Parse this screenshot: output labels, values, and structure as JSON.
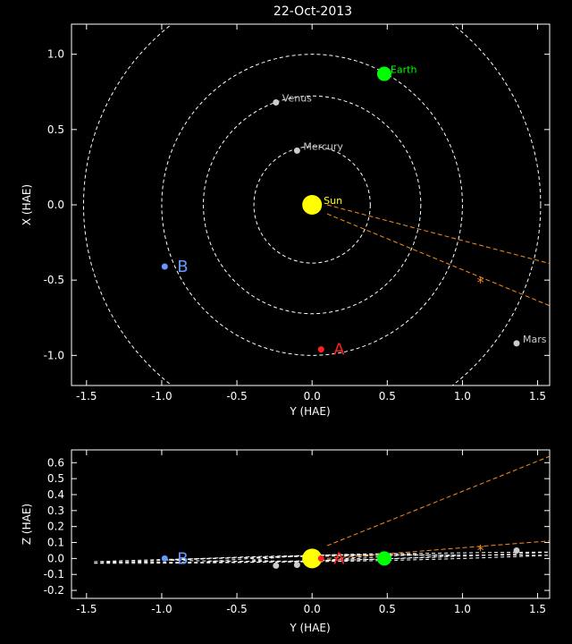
{
  "title": "22-Oct-2013",
  "chart_data": [
    {
      "type": "scatter",
      "panel": "top",
      "title": "22-Oct-2013",
      "xlabel": "Y (HAE)",
      "ylabel": "X (HAE)",
      "xlim": [
        -1.6,
        1.58
      ],
      "ylim": [
        1.2,
        -1.2
      ],
      "xticks": [
        "-1.5",
        "-1.0",
        "-0.5",
        "0.0",
        "0.5",
        "1.0",
        "1.5"
      ],
      "xtick_values": [
        -1.5,
        -1.0,
        -0.5,
        0.0,
        0.5,
        1.0,
        1.5
      ],
      "yticks": [
        "-1.0",
        "-0.5",
        "0.0",
        "0.5",
        "1.0"
      ],
      "ytick_values": [
        -1.0,
        -0.5,
        0.0,
        0.5,
        1.0
      ],
      "orbits": [
        {
          "name": "Mercury",
          "radius": 0.387
        },
        {
          "name": "Venus",
          "radius": 0.723
        },
        {
          "name": "Earth",
          "radius": 1.0
        },
        {
          "name": "Mars",
          "radius": 1.52
        }
      ],
      "bodies": [
        {
          "label": "Sun",
          "x": 0.0,
          "y": 0.0,
          "color": "#ffff00",
          "label_color": "#ffff00",
          "size": "large"
        },
        {
          "label": "Mercury",
          "x": -0.1,
          "y": 0.36,
          "color": "#cccccc",
          "label_color": "#cccccc",
          "size": "small"
        },
        {
          "label": "Venus",
          "x": -0.24,
          "y": 0.68,
          "color": "#cccccc",
          "label_color": "#cccccc",
          "size": "small"
        },
        {
          "label": "Earth",
          "x": 0.48,
          "y": 0.87,
          "color": "#00ff00",
          "label_color": "#00ff00",
          "size": "medium"
        },
        {
          "label": "Mars",
          "x": 1.36,
          "y": -0.92,
          "color": "#cccccc",
          "label_color": "#cccccc",
          "size": "small"
        },
        {
          "label": "A",
          "x": 0.06,
          "y": -0.96,
          "color": "#ff2020",
          "label_color": "#ff2020",
          "size": "small"
        },
        {
          "label": "B",
          "x": -0.98,
          "y": -0.41,
          "color": "#6699ff",
          "label_color": "#6699ff",
          "size": "small"
        }
      ],
      "marker": {
        "symbol": "*",
        "x": 1.12,
        "y": -0.51,
        "color": "#ff8c1a"
      },
      "cone": {
        "color": "#ff8c1a",
        "lines": [
          [
            [
              0.1,
              -0.06
            ],
            [
              1.58,
              -0.67
            ]
          ],
          [
            [
              0.1,
              0.0
            ],
            [
              1.58,
              -0.39
            ]
          ]
        ]
      }
    },
    {
      "type": "scatter",
      "panel": "bottom",
      "xlabel": "Y (HAE)",
      "ylabel": "Z (HAE)",
      "xlim": [
        -1.6,
        1.58
      ],
      "ylim": [
        -0.25,
        0.68
      ],
      "xticks": [
        "-1.5",
        "-1.0",
        "-0.5",
        "0.0",
        "0.5",
        "1.0",
        "1.5"
      ],
      "xtick_values": [
        -1.5,
        -1.0,
        -0.5,
        0.0,
        0.5,
        1.0,
        1.5
      ],
      "yticks": [
        "-0.2",
        "-0.1",
        "0.0",
        "0.1",
        "0.2",
        "0.3",
        "0.4",
        "0.5",
        "0.6"
      ],
      "ytick_values": [
        -0.2,
        -0.1,
        0.0,
        0.1,
        0.2,
        0.3,
        0.4,
        0.5,
        0.6
      ],
      "bodies": [
        {
          "label": "",
          "x": 0.0,
          "y": 0.0,
          "color": "#ffff00",
          "size": "large"
        },
        {
          "label": "",
          "x": -0.1,
          "y": -0.04,
          "color": "#cccccc",
          "size": "small"
        },
        {
          "label": "",
          "x": -0.24,
          "y": -0.045,
          "color": "#cccccc",
          "size": "small"
        },
        {
          "label": "",
          "x": 0.48,
          "y": 0.0,
          "color": "#00ff00",
          "size": "medium"
        },
        {
          "label": "",
          "x": 1.36,
          "y": 0.05,
          "color": "#cccccc",
          "size": "small"
        },
        {
          "label": "A",
          "x": 0.06,
          "y": 0.0,
          "color": "#ff2020",
          "label_color": "#ff2020",
          "size": "small"
        },
        {
          "label": "B",
          "x": -0.98,
          "y": 0.0,
          "color": "#6699ff",
          "label_color": "#6699ff",
          "size": "small"
        }
      ],
      "marker": {
        "symbol": "*",
        "x": 1.12,
        "y": 0.055,
        "color": "#ff8c1a"
      },
      "cone": {
        "color": "#ff8c1a",
        "lines": [
          [
            [
              0.1,
              0.08
            ],
            [
              1.58,
              0.64
            ]
          ],
          [
            [
              0.1,
              0.0
            ],
            [
              1.58,
              0.11
            ]
          ]
        ]
      },
      "orbit_traces": [
        [
          [
            -1.45,
            -0.03
          ],
          [
            1.58,
            0.04
          ]
        ],
        [
          [
            -1.45,
            -0.02
          ],
          [
            1.58,
            0.02
          ]
        ],
        [
          [
            -0.98,
            -0.01
          ],
          [
            0.98,
            0.02
          ]
        ],
        [
          [
            -0.7,
            -0.02
          ],
          [
            0.7,
            0.03
          ]
        ],
        [
          [
            -0.4,
            -0.01
          ],
          [
            0.4,
            0.02
          ]
        ]
      ]
    }
  ]
}
